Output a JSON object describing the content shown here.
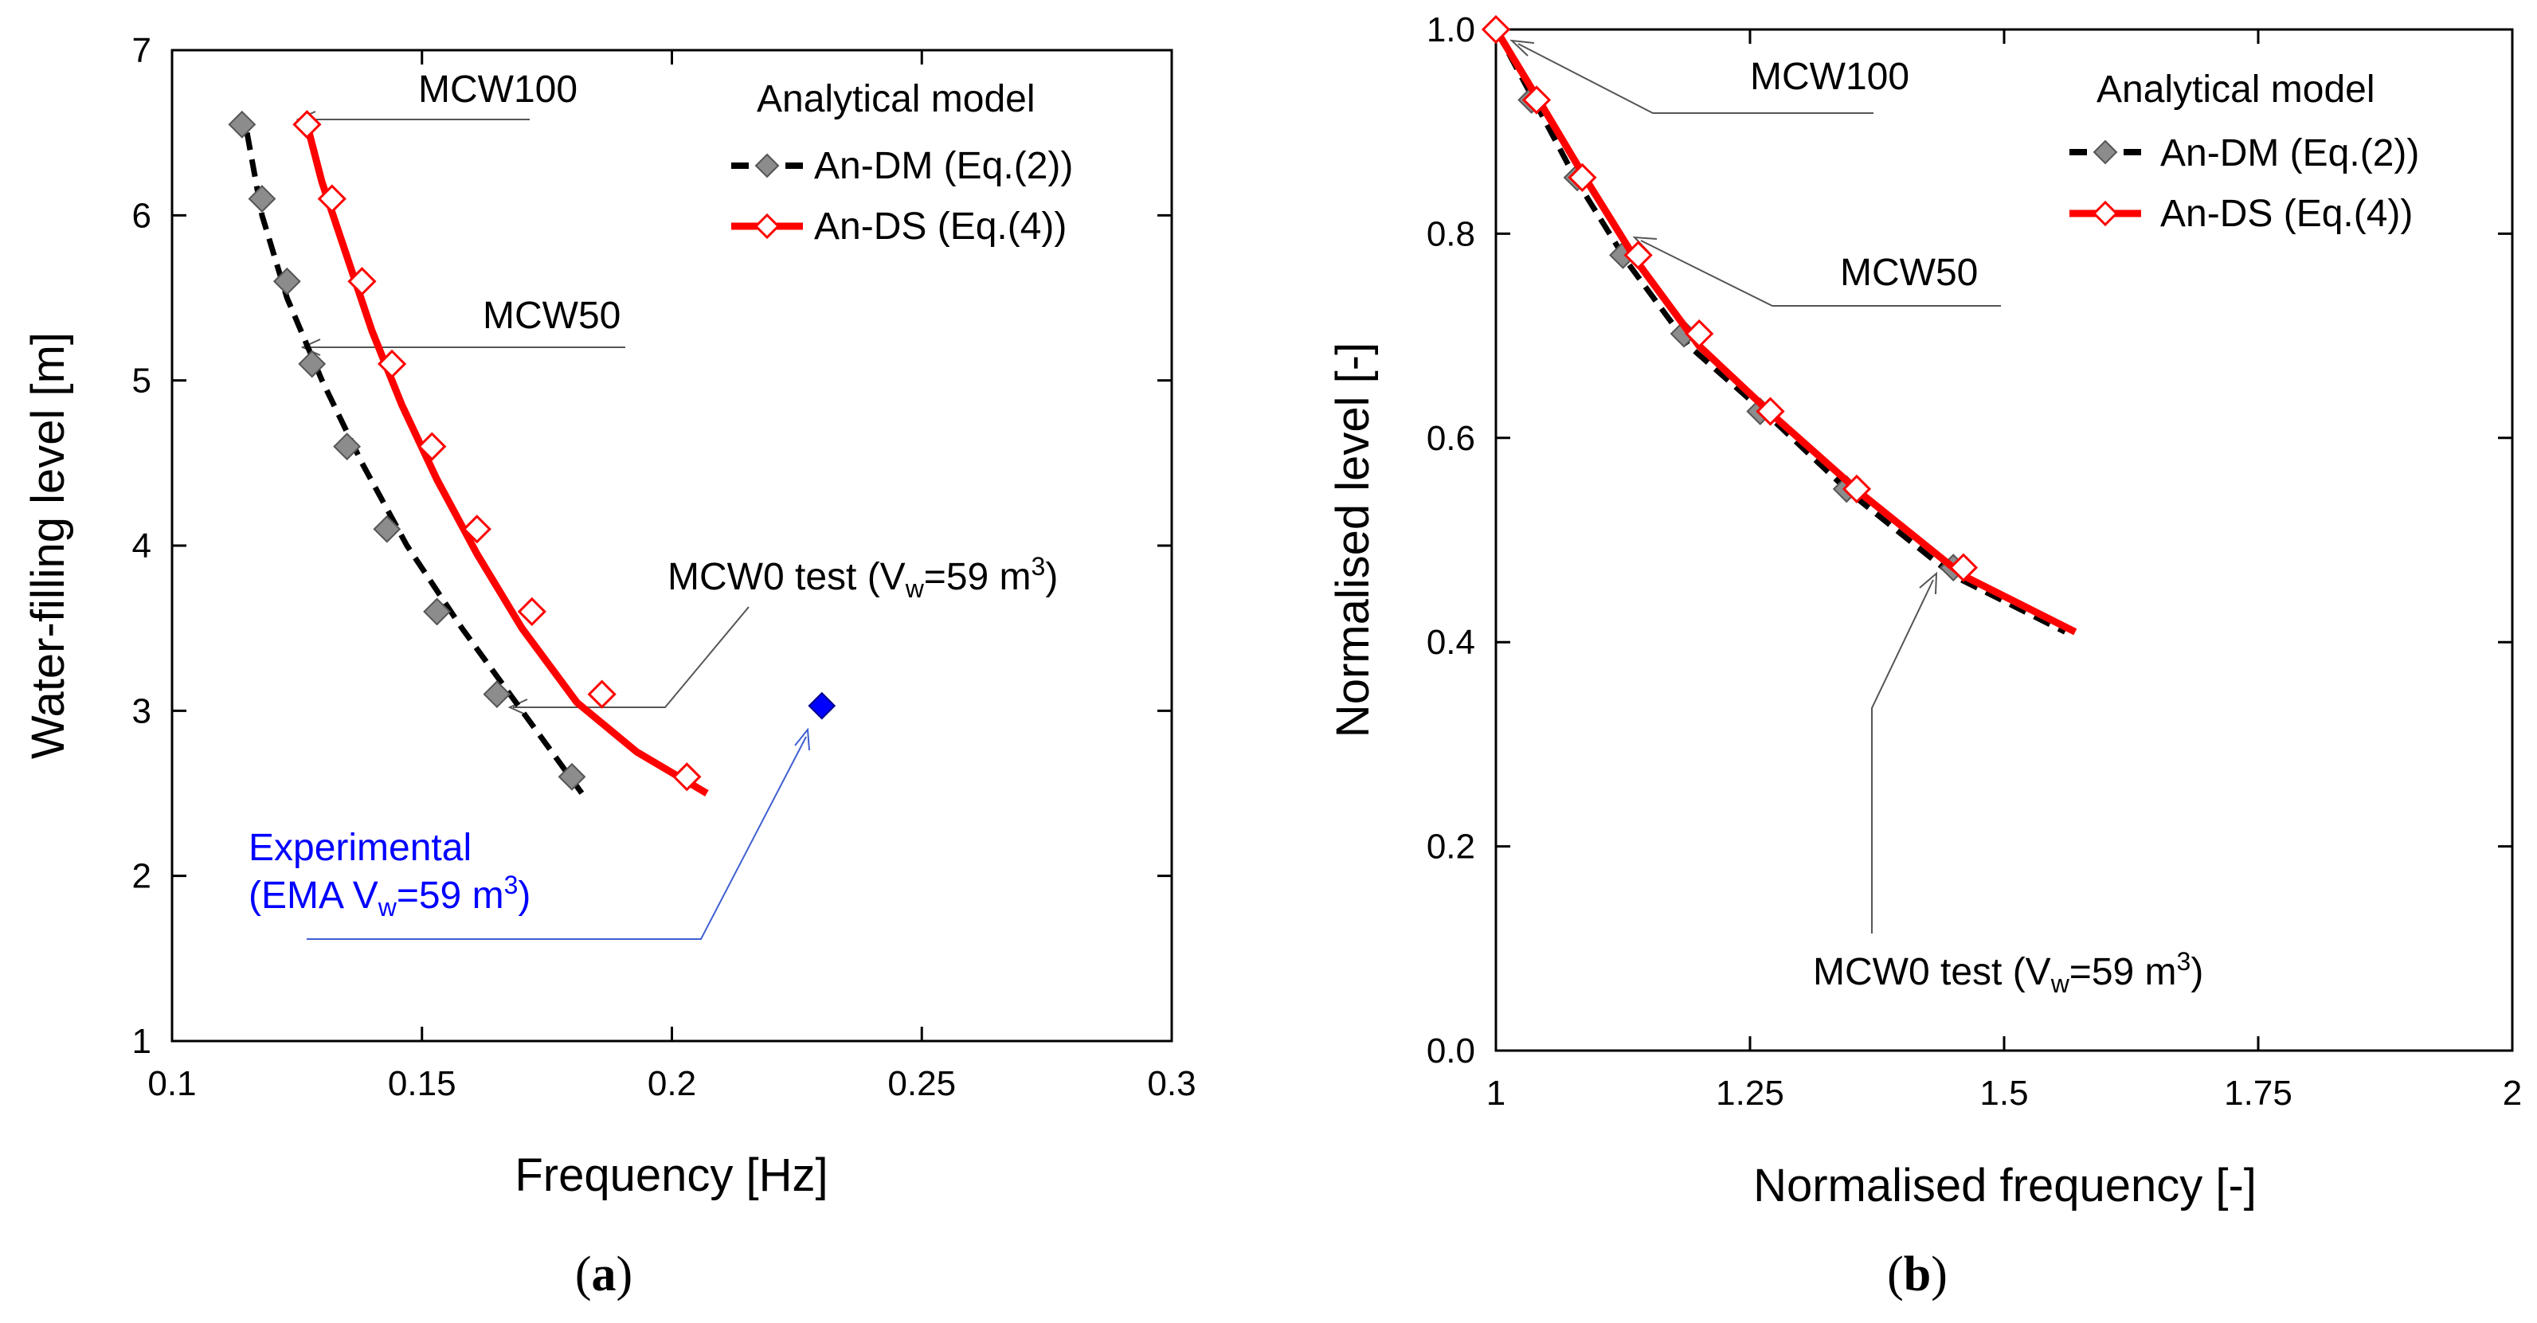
{
  "colors": {
    "an_dm": "#000000",
    "an_dm_marker": "#8c8c8c",
    "an_ds": "#ff0000",
    "experimental": "#0000ff",
    "annotation": "#555555"
  },
  "chart_data": [
    {
      "id": "a",
      "caption": "(a)",
      "caption_letter": "a",
      "type": "line",
      "xlabel": "Frequency  [Hz]",
      "ylabel": "Water-filling level  [m]",
      "xlim": [
        0.1,
        0.3
      ],
      "ylim": [
        1,
        7
      ],
      "xticks": [
        0.1,
        0.15,
        0.2,
        0.25,
        0.3
      ],
      "yticks": [
        1,
        2,
        3,
        4,
        5,
        6,
        7
      ],
      "xtick_labels": [
        "0.1",
        "0.15",
        "0.2",
        "0.25",
        "0.3"
      ],
      "ytick_labels": [
        "1",
        "2",
        "3",
        "4",
        "5",
        "6",
        "7"
      ],
      "legend": {
        "title": "Analytical model",
        "entries": [
          "An-DM (Eq.(2))",
          "An-DS (Eq.(4))"
        ]
      },
      "series": [
        {
          "name": "An-DM (Eq.(2))",
          "style": "dashed",
          "marker": "filled-diamond",
          "curve": {
            "x": [
              0.115,
              0.118,
              0.123,
              0.13,
              0.138,
              0.147,
              0.158,
              0.17,
              0.182
            ],
            "y": [
              6.5,
              6.0,
              5.5,
              5.0,
              4.5,
              4.0,
              3.5,
              3.0,
              2.5
            ]
          },
          "markers": {
            "x": [
              0.114,
              0.118,
              0.123,
              0.128,
              0.135,
              0.143,
              0.153,
              0.165,
              0.18
            ],
            "y": [
              6.55,
              6.1,
              5.6,
              5.1,
              4.6,
              4.1,
              3.6,
              3.1,
              2.6
            ]
          }
        },
        {
          "name": "An-DS (Eq.(4))",
          "style": "solid",
          "marker": "open-diamond",
          "curve": {
            "x": [
              0.127,
              0.13,
              0.135,
              0.14,
              0.146,
              0.153,
              0.161,
              0.17,
              0.181,
              0.193,
              0.207
            ],
            "y": [
              6.55,
              6.2,
              5.75,
              5.3,
              4.85,
              4.4,
              3.95,
              3.5,
              3.05,
              2.75,
              2.5
            ]
          },
          "markers": {
            "x": [
              0.127,
              0.132,
              0.138,
              0.144,
              0.152,
              0.161,
              0.172,
              0.186,
              0.203
            ],
            "y": [
              6.55,
              6.1,
              5.6,
              5.1,
              4.6,
              4.1,
              3.6,
              3.1,
              2.6
            ]
          }
        },
        {
          "name": "Experimental (EMA Vw=59 m3)",
          "style": "none",
          "marker": "filled-diamond",
          "markers": {
            "x": [
              0.23
            ],
            "y": [
              3.03
            ]
          }
        }
      ],
      "annotations": {
        "mcw100": "MCW100",
        "mcw50": "MCW50",
        "mcw0_prefix": "MCW0 test (V",
        "mcw0_sub": "w",
        "mcw0_mid": "=59 m",
        "mcw0_sup": "3",
        "mcw0_suffix": ")",
        "exp_line1": "Experimental",
        "exp_prefix": "(EMA V",
        "exp_sub": "w",
        "exp_mid": "=59 m",
        "exp_sup": "3",
        "exp_suffix": ")"
      }
    },
    {
      "id": "b",
      "caption": "(b)",
      "caption_letter": "b",
      "type": "line",
      "xlabel": "Normalised frequency  [-]",
      "ylabel": "Normalised level  [-]",
      "xlim": [
        1,
        2
      ],
      "ylim": [
        0,
        1
      ],
      "xticks": [
        1,
        1.25,
        1.5,
        1.75,
        2
      ],
      "yticks": [
        0,
        0.2,
        0.4,
        0.6,
        0.8,
        1.0
      ],
      "xtick_labels": [
        "1",
        "1.25",
        "1.5",
        "1.75",
        "2"
      ],
      "ytick_labels": [
        "0.0",
        "0.2",
        "0.4",
        "0.6",
        "0.8",
        "1.0"
      ],
      "legend": {
        "title": "Analytical model",
        "entries": [
          "An-DM (Eq.(2))",
          "An-DS (Eq.(4))"
        ]
      },
      "series": [
        {
          "name": "An-DM (Eq.(2))",
          "style": "dashed",
          "marker": "filled-diamond",
          "curve": {
            "x": [
              1.0,
              1.04,
              1.08,
              1.13,
              1.19,
              1.27,
              1.35,
              1.45,
              1.56
            ],
            "y": [
              1.0,
              0.926,
              0.851,
              0.771,
              0.69,
              0.62,
              0.545,
              0.465,
              0.41
            ]
          },
          "markers": {
            "x": [
              1.0,
              1.035,
              1.08,
              1.125,
              1.185,
              1.26,
              1.345,
              1.45
            ],
            "y": [
              1.0,
              0.931,
              0.855,
              0.779,
              0.702,
              0.626,
              0.55,
              0.473
            ]
          }
        },
        {
          "name": "An-DS (Eq.(4))",
          "style": "solid",
          "marker": "open-diamond",
          "curve": {
            "x": [
              1.0,
              1.045,
              1.09,
              1.14,
              1.2,
              1.275,
              1.36,
              1.46,
              1.57
            ],
            "y": [
              1.0,
              0.926,
              0.851,
              0.771,
              0.69,
              0.62,
              0.545,
              0.465,
              0.41
            ]
          },
          "markers": {
            "x": [
              1.0,
              1.04,
              1.085,
              1.14,
              1.2,
              1.27,
              1.355,
              1.46
            ],
            "y": [
              1.0,
              0.931,
              0.855,
              0.779,
              0.702,
              0.626,
              0.55,
              0.473
            ]
          }
        }
      ],
      "annotations": {
        "mcw100": "MCW100",
        "mcw50": "MCW50",
        "mcw0_prefix": "MCW0 test (V",
        "mcw0_sub": "w",
        "mcw0_mid": "=59 m",
        "mcw0_sup": "3",
        "mcw0_suffix": ")"
      }
    }
  ]
}
